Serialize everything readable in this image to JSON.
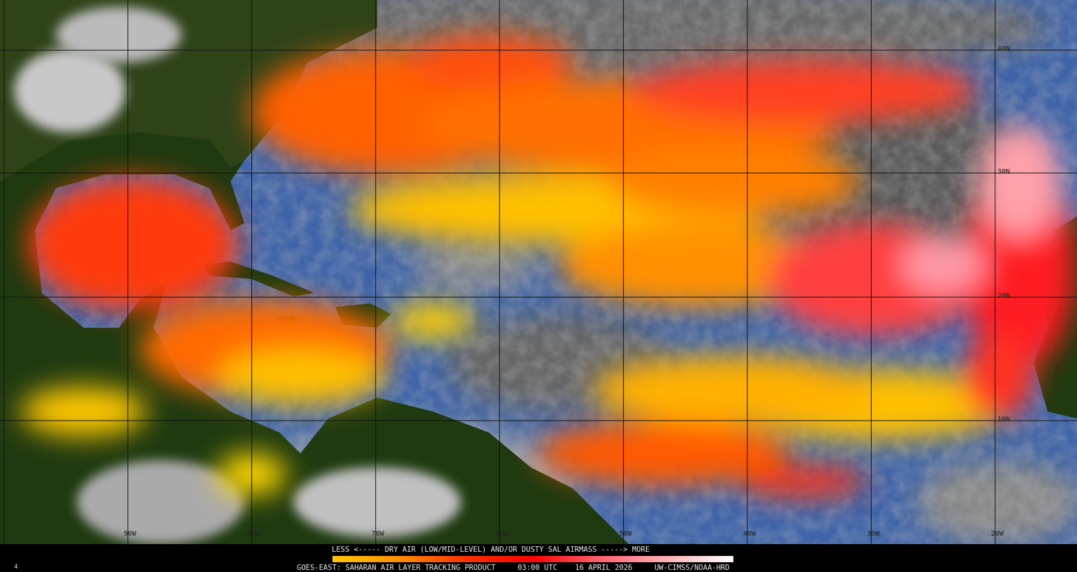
{
  "product": {
    "legend_text": "LESS <----- DRY AIR (LOW/MID-LEVEL) AND/OR DUSTY SAL AIRMASS -----> MORE",
    "satellite": "GOES-EAST:",
    "title": "SAHARAN AIR LAYER TRACKING PRODUCT",
    "time": "03:00 UTC",
    "date": "16 APRIL 2026",
    "credit": "UW-CIMSS/NOAA-HRD",
    "corner_mark": "4"
  },
  "colorbar": {
    "stops": [
      "#ffc800",
      "#ff8c00",
      "#ff3000",
      "#ff0000",
      "#ff6070",
      "#ffb0b8",
      "#ffffff"
    ]
  },
  "grid": {
    "longitudes": [
      "90W",
      "80W",
      "70W",
      "60W",
      "50W",
      "40W",
      "30W",
      "20W"
    ],
    "latitudes": [
      "40N",
      "30N",
      "20N",
      "10N"
    ]
  },
  "colors": {
    "ocean": "#3f64a8",
    "land": "#1f3a10",
    "cloud": "#9a9a9a",
    "dry_air_low": "#ffe000",
    "dry_air_mid": "#ff7a00",
    "dry_air_high": "#ff2020",
    "dust_max": "#ffb8c0"
  }
}
